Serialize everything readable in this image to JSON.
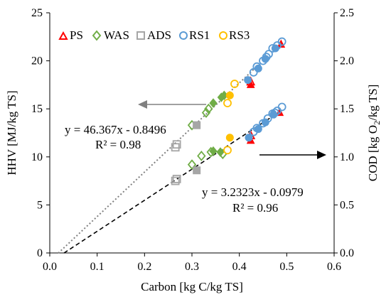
{
  "chart_data": {
    "type": "scatter",
    "xlabel": "Carbon [kg C/kg TS]",
    "ylabel_left": "HHV [MJ/kg TS]",
    "ylabel_right_prefix": "COD [kg O",
    "ylabel_right_sub": "2",
    "ylabel_right_suffix": "/kg TS]",
    "xlim": [
      0,
      0.6
    ],
    "ylim_left": [
      0,
      25
    ],
    "ylim_right": [
      0,
      2.5
    ],
    "x_ticks": [
      "0.0",
      "0.1",
      "0.2",
      "0.3",
      "0.4",
      "0.5",
      "0.6"
    ],
    "y_left_ticks": [
      "0",
      "5",
      "10",
      "15",
      "20",
      "25"
    ],
    "y_right_ticks": [
      "0.0",
      "0.5",
      "1.0",
      "1.5",
      "2.0",
      "2.5"
    ],
    "grid": false,
    "legend_position": "top",
    "legend": [
      {
        "name": "PS",
        "marker": "triangle",
        "color": "#ff0000"
      },
      {
        "name": "WAS",
        "marker": "diamond",
        "color": "#70ad47"
      },
      {
        "name": "ADS",
        "marker": "square",
        "color": "#a6a6a6"
      },
      {
        "name": "RS1",
        "marker": "circle",
        "color": "#5b9bd5"
      },
      {
        "name": "RS3",
        "marker": "circle",
        "color": "#ffc000"
      }
    ],
    "series": [
      {
        "name": "PS",
        "marker": "triangle",
        "color": "#ff0000",
        "axis": "left",
        "hollow": [
          [
            0.424,
            17.8
          ]
        ],
        "filled": [
          [
            0.424,
            17.5
          ],
          [
            0.488,
            21.7
          ]
        ]
      },
      {
        "name": "WAS",
        "marker": "diamond",
        "color": "#70ad47",
        "axis": "left",
        "hollow": [
          [
            0.3,
            13.3
          ],
          [
            0.33,
            14.6
          ],
          [
            0.335,
            15.0
          ]
        ],
        "filled": [
          [
            0.345,
            15.6
          ],
          [
            0.362,
            16.2
          ],
          [
            0.368,
            16.4
          ]
        ]
      },
      {
        "name": "ADS",
        "marker": "square",
        "color": "#a6a6a6",
        "axis": "left",
        "hollow": [
          [
            0.265,
            11.0
          ],
          [
            0.268,
            11.3
          ]
        ],
        "filled": [
          [
            0.31,
            13.3
          ]
        ]
      },
      {
        "name": "RS1",
        "marker": "circle",
        "color": "#5b9bd5",
        "axis": "left",
        "hollow": [
          [
            0.43,
            18.8
          ],
          [
            0.437,
            19.4
          ],
          [
            0.45,
            20.0
          ],
          [
            0.457,
            20.4
          ],
          [
            0.462,
            20.7
          ],
          [
            0.47,
            21.3
          ],
          [
            0.48,
            21.6
          ],
          [
            0.49,
            22.0
          ]
        ],
        "filled": [
          [
            0.418,
            18.0
          ],
          [
            0.44,
            19.2
          ],
          [
            0.455,
            20.2
          ],
          [
            0.476,
            21.3
          ]
        ]
      },
      {
        "name": "RS3",
        "marker": "circle",
        "color": "#ffc000",
        "axis": "left",
        "hollow": [
          [
            0.375,
            15.6
          ],
          [
            0.39,
            17.6
          ]
        ],
        "filled": [
          [
            0.38,
            16.4
          ]
        ]
      },
      {
        "name": "PS",
        "marker": "triangle",
        "color": "#ff0000",
        "axis": "right",
        "hollow": [
          [
            0.424,
            1.22
          ]
        ],
        "filled": [
          [
            0.424,
            1.17
          ],
          [
            0.485,
            1.46
          ]
        ]
      },
      {
        "name": "WAS",
        "marker": "diamond",
        "color": "#70ad47",
        "axis": "right",
        "hollow": [
          [
            0.3,
            0.92
          ],
          [
            0.32,
            1.01
          ],
          [
            0.34,
            1.05
          ],
          [
            0.365,
            1.03
          ]
        ],
        "filled": [
          [
            0.345,
            1.06
          ],
          [
            0.36,
            1.05
          ]
        ]
      },
      {
        "name": "ADS",
        "marker": "square",
        "color": "#a6a6a6",
        "axis": "right",
        "hollow": [
          [
            0.265,
            0.75
          ],
          [
            0.268,
            0.77
          ]
        ],
        "filled": [
          [
            0.31,
            0.86
          ]
        ]
      },
      {
        "name": "RS1",
        "marker": "circle",
        "color": "#5b9bd5",
        "axis": "right",
        "hollow": [
          [
            0.43,
            1.26
          ],
          [
            0.437,
            1.3
          ],
          [
            0.45,
            1.35
          ],
          [
            0.46,
            1.4
          ],
          [
            0.47,
            1.45
          ],
          [
            0.475,
            1.46
          ],
          [
            0.48,
            1.48
          ],
          [
            0.49,
            1.52
          ]
        ],
        "filled": [
          [
            0.42,
            1.2
          ],
          [
            0.44,
            1.29
          ],
          [
            0.455,
            1.36
          ],
          [
            0.472,
            1.44
          ]
        ]
      },
      {
        "name": "RS3",
        "marker": "circle",
        "color": "#ffc000",
        "axis": "right",
        "hollow": [
          [
            0.375,
            1.07
          ]
        ],
        "filled": [
          [
            0.38,
            1.2
          ]
        ]
      }
    ],
    "trendlines": [
      {
        "axis": "left",
        "style": "dotted",
        "color": "#808080",
        "slope": 46.367,
        "intercept": -0.8496,
        "x_range": [
          0.018,
          0.43
        ]
      },
      {
        "axis": "right",
        "style": "dashed",
        "color": "#000000",
        "slope": 3.2323,
        "intercept": -0.0979,
        "x_range": [
          0.03,
          0.49
        ]
      }
    ],
    "annotations": [
      {
        "eq": "y = 46.367x - 0.8496",
        "r2": "R² = 0.98",
        "arrow": "left"
      },
      {
        "eq": "y = 3.2323x - 0.0979",
        "r2": "R² = 0.96",
        "arrow": "right"
      }
    ]
  }
}
